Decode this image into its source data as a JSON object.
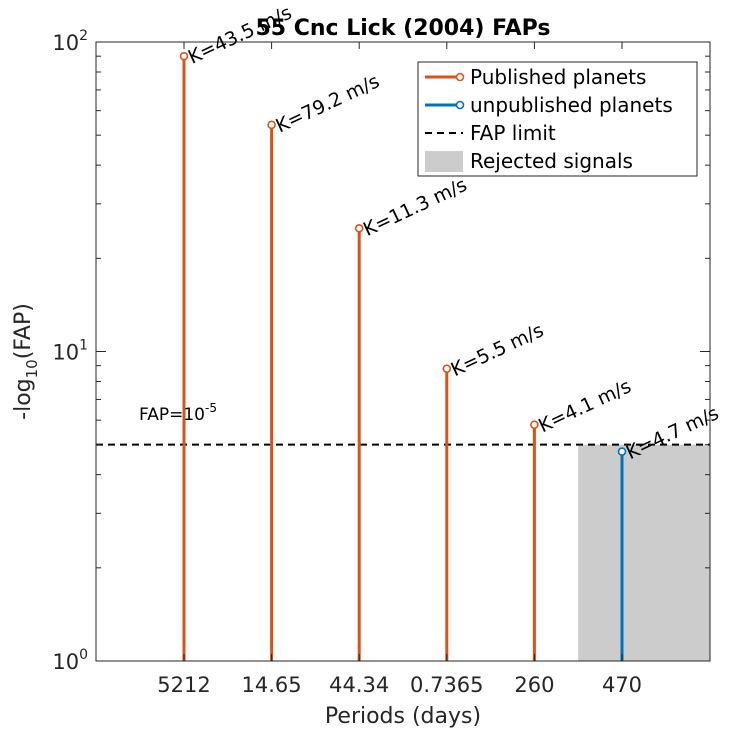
{
  "chart_data": {
    "type": "stem",
    "title": "55 Cnc Lick (2004) FAPs",
    "xlabel": "Periods (days)",
    "ylabel": "-log10(FAP)",
    "ylabel_base": "-log",
    "ylabel_sub": "10",
    "ylabel_rest": "(FAP)",
    "yscale": "log",
    "ylim": [
      1,
      100
    ],
    "yticks": [
      {
        "value": 1,
        "base": "10",
        "exp": "0"
      },
      {
        "value": 10,
        "base": "10",
        "exp": "1"
      },
      {
        "value": 100,
        "base": "10",
        "exp": "2"
      }
    ],
    "categories": [
      "5212",
      "14.65",
      "44.34",
      "0.7365",
      "260",
      "470"
    ],
    "points": [
      {
        "category": "5212",
        "value": 90,
        "label": "K=43.5 m/s",
        "series": "Published planets"
      },
      {
        "category": "14.65",
        "value": 54,
        "label": "K=79.2 m/s",
        "series": "Published planets"
      },
      {
        "category": "44.34",
        "value": 25,
        "label": "K=11.3 m/s",
        "series": "Published planets"
      },
      {
        "category": "0.7365",
        "value": 8.8,
        "label": "K=5.5 m/s",
        "series": "Published planets"
      },
      {
        "category": "260",
        "value": 5.8,
        "label": "K=4.1 m/s",
        "series": "Published planets"
      },
      {
        "category": "470",
        "value": 4.75,
        "label": "K=4.7 m/s",
        "series": "unpublished planets"
      }
    ],
    "fap_limit": {
      "value": 5,
      "label_base": "FAP=10",
      "label_exp": "-5"
    },
    "rejected_region": {
      "from_category": "260",
      "extends_to": "right-edge",
      "y_max": 5
    },
    "legend": {
      "placement": "top-right",
      "entries": [
        {
          "label": "Published planets",
          "kind": "stem",
          "color": "#d95319"
        },
        {
          "label": "unpublished planets",
          "kind": "stem",
          "color": "#0072bd"
        },
        {
          "label": "FAP limit",
          "kind": "dashed",
          "color": "#000000"
        },
        {
          "label": "Rejected signals",
          "kind": "patch",
          "color": "#cccccc"
        }
      ]
    },
    "colors": {
      "published": "#d95319",
      "unpublished": "#0072bd",
      "rejected": "#cccccc",
      "axis": "#262626"
    },
    "grid": false
  }
}
